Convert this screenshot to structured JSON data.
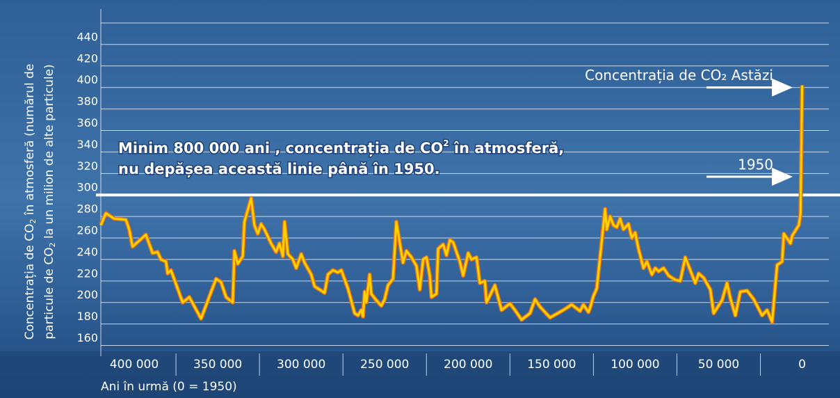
{
  "chart_data": {
    "type": "line",
    "ylabel": [
      [
        "Concentrația de CO",
        "2",
        " în atmosferă (numărul de"
      ],
      [
        "particule de CO",
        "2",
        " la un milion de alte particule)"
      ]
    ],
    "xlabel": "Ani în urmă (0 = 1950)",
    "annotation": [
      [
        "Minim 800 000 ani , concentrația de CO",
        "2",
        " în atmosferă,"
      ],
      [
        "nu depășea această linie  până în 1950."
      ]
    ],
    "threshold": 300,
    "markers": [
      {
        "label": "Concentrația de CO₂ Astăzi",
        "value": 400
      },
      {
        "label": "1950",
        "value": 317
      }
    ],
    "x": [
      420000,
      417000,
      412000,
      405000,
      403000,
      401000,
      393000,
      389000,
      386000,
      384000,
      381000,
      380000,
      378000,
      371000,
      367000,
      360000,
      351000,
      348000,
      345000,
      341000,
      340000,
      338000,
      335000,
      334000,
      330000,
      328000,
      326000,
      324000,
      322000,
      318000,
      315000,
      313000,
      311000,
      310000,
      308000,
      305000,
      303000,
      300000,
      298000,
      294000,
      292000,
      286000,
      284000,
      281000,
      278000,
      276000,
      272000,
      268000,
      266000,
      264000,
      263000,
      262000,
      261000,
      259000,
      258000,
      255000,
      252000,
      250000,
      248000,
      245000,
      243000,
      239000,
      237000,
      234000,
      231000,
      229000,
      227000,
      225000,
      223000,
      222000,
      219000,
      218000,
      215000,
      213000,
      211000,
      209000,
      205000,
      203000,
      200000,
      198000,
      195000,
      193000,
      190000,
      189000,
      184000,
      180000,
      175000,
      172000,
      168000,
      163000,
      160000,
      157000,
      151000,
      143000,
      138000,
      133000,
      131000,
      128000,
      127000,
      125000,
      123000,
      118000,
      117000,
      115000,
      113000,
      111000,
      109000,
      107000,
      104000,
      102000,
      100000,
      98000,
      95000,
      93000,
      90000,
      88000,
      86000,
      83000,
      80000,
      76000,
      73000,
      70000,
      64000,
      62000,
      59000,
      55000,
      53000,
      48000,
      45000,
      43000,
      40000,
      37000,
      33000,
      29000,
      24000,
      21000,
      18000,
      15000,
      12000,
      11000,
      7000,
      6000,
      2000,
      1000,
      0
    ],
    "series": [
      {
        "name": "CO2",
        "color": "#ffd200",
        "values": [
          272,
          283,
          278,
          277,
          268,
          252,
          263,
          246,
          247,
          240,
          238,
          227,
          230,
          200,
          205,
          185,
          222,
          219,
          205,
          200,
          248,
          236,
          243,
          275,
          297,
          272,
          264,
          273,
          268,
          255,
          247,
          255,
          243,
          275,
          245,
          240,
          232,
          245,
          237,
          226,
          215,
          209,
          226,
          230,
          228,
          230,
          213,
          190,
          188,
          193,
          187,
          210,
          200,
          226,
          208,
          202,
          197,
          203,
          216,
          222,
          275,
          237,
          248,
          242,
          234,
          212,
          240,
          242,
          225,
          205,
          208,
          250,
          254,
          244,
          258,
          256,
          238,
          225,
          246,
          240,
          242,
          218,
          220,
          200,
          216,
          193,
          199,
          193,
          184,
          190,
          203,
          196,
          186,
          193,
          198,
          192,
          198,
          191,
          195,
          206,
          213,
          287,
          268,
          280,
          272,
          270,
          278,
          268,
          273,
          260,
          265,
          250,
          232,
          238,
          226,
          232,
          229,
          232,
          225,
          221,
          220,
          242,
          218,
          227,
          223,
          212,
          190,
          202,
          218,
          204,
          188,
          210,
          211,
          203,
          188,
          193,
          182,
          235,
          238,
          264,
          255,
          262,
          272,
          282,
          402
        ]
      }
    ],
    "xlim": [
      420000,
      -16000
    ],
    "xticks": [
      {
        "value": 400000,
        "label": "400 000"
      },
      {
        "value": 350000,
        "label": "350 000"
      },
      {
        "value": 300000,
        "label": "300 000"
      },
      {
        "value": 250000,
        "label": "250 000"
      },
      {
        "value": 200000,
        "label": "200 000"
      },
      {
        "value": 150000,
        "label": "150 000"
      },
      {
        "value": 100000,
        "label": "100 000"
      },
      {
        "value": 50000,
        "label": "50 000"
      },
      0
    ],
    "ylim": [
      150,
      460
    ],
    "yticks": [
      160,
      180,
      200,
      220,
      240,
      260,
      280,
      300,
      320,
      340,
      360,
      380,
      400,
      420,
      440
    ],
    "grid": true
  }
}
